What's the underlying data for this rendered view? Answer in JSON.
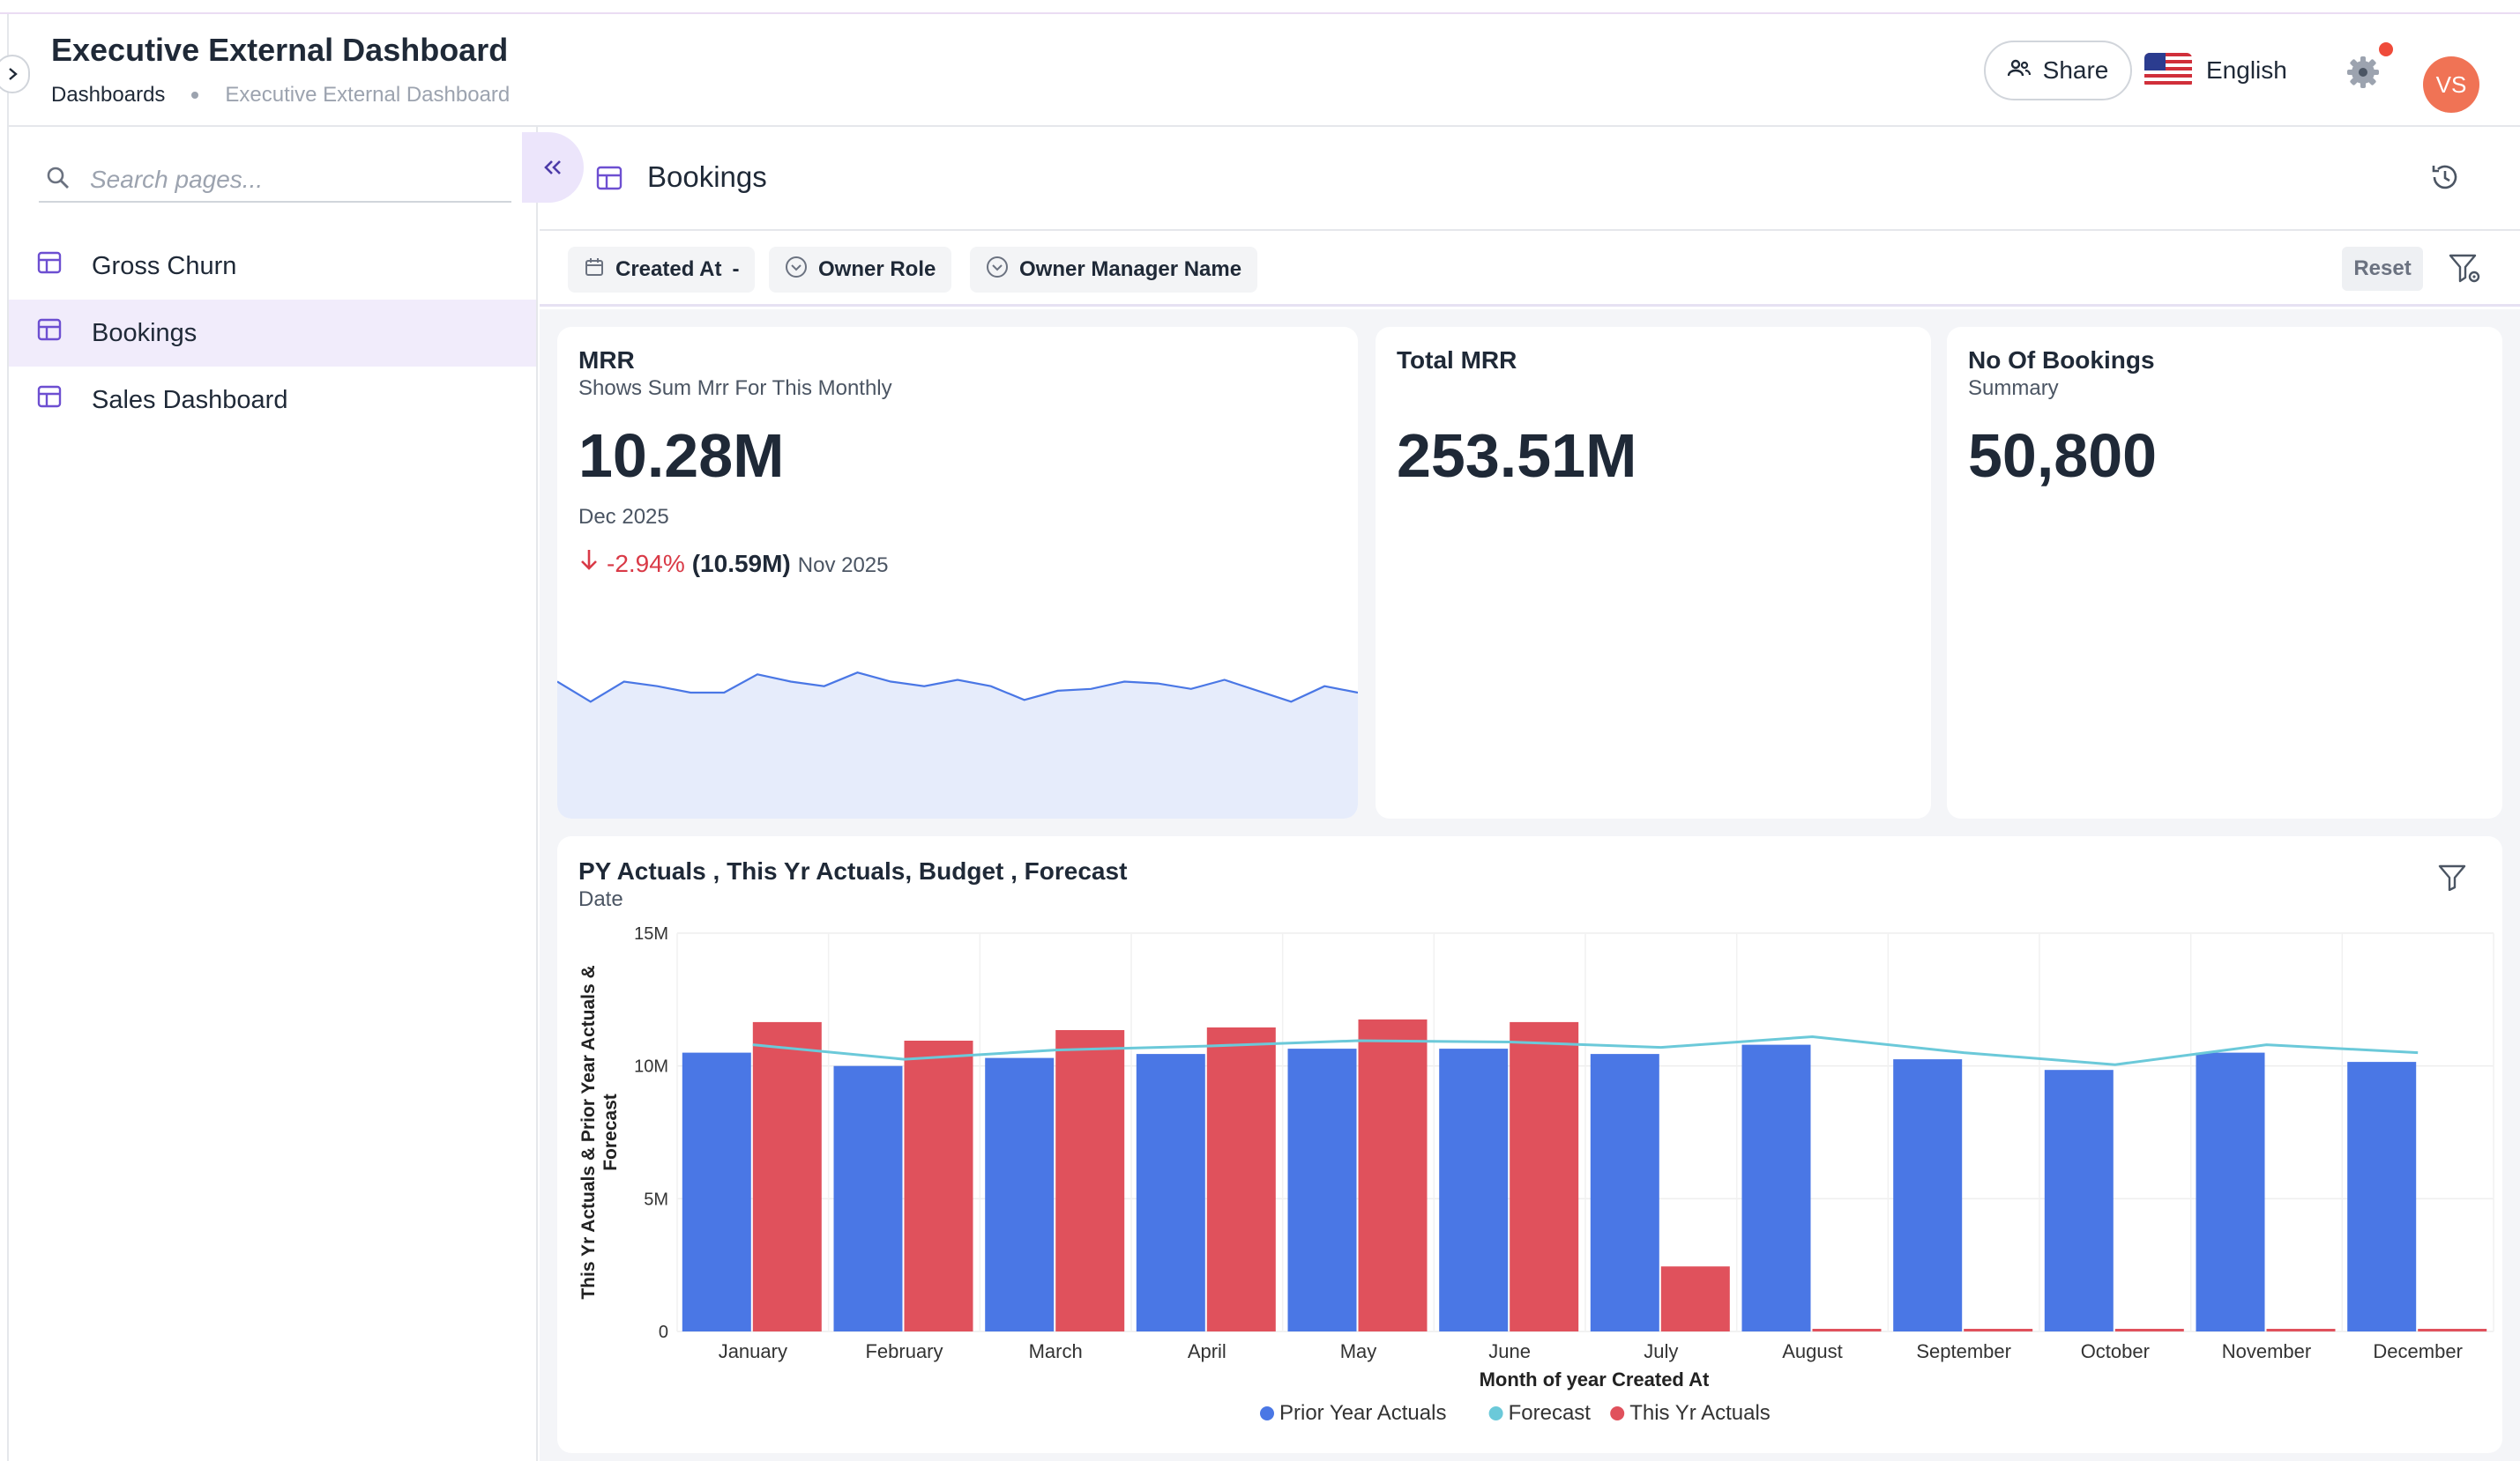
{
  "header": {
    "title": "Executive External Dashboard",
    "breadcrumb": [
      "Dashboards",
      "Executive External Dashboard"
    ],
    "share_label": "Share",
    "language": "English",
    "avatar_initials": "VS"
  },
  "sidebar": {
    "search_placeholder": "Search pages...",
    "items": [
      {
        "label": "Gross Churn",
        "active": false
      },
      {
        "label": "Bookings",
        "active": true
      },
      {
        "label": "Sales Dashboard",
        "active": false
      }
    ]
  },
  "page": {
    "title": "Bookings"
  },
  "filters": {
    "chips": [
      "Created At",
      "Owner Role",
      "Owner Manager Name"
    ],
    "created_at_suffix": "-",
    "reset_label": "Reset"
  },
  "cards": {
    "mrr": {
      "title": "MRR",
      "subtitle": "Shows Sum Mrr For This Monthly",
      "value": "10.28M",
      "period": "Dec 2025",
      "delta_pct": "-2.94%",
      "delta_prev": "(10.59M)",
      "delta_label": "Nov 2025",
      "sparkline": [
        10.5,
        10.28,
        10.5,
        10.45,
        10.38,
        10.38,
        10.58,
        10.5,
        10.45,
        10.6,
        10.5,
        10.45,
        10.52,
        10.45,
        10.3,
        10.4,
        10.42,
        10.5,
        10.48,
        10.42,
        10.52,
        10.4,
        10.28,
        10.45,
        10.38
      ]
    },
    "total_mrr": {
      "title": "Total MRR",
      "value": "253.51M"
    },
    "bookings": {
      "title": "No Of Bookings",
      "subtitle": "Summary",
      "value": "50,800"
    }
  },
  "chart_data": {
    "type": "bar",
    "title": "PY Actuals , This Yr Actuals, Budget , Forecast",
    "subtitle": "Date",
    "xlabel": "Month of year Created At",
    "ylabel": "This Yr Actuals & Prior Year Actuals & Forecast",
    "ylim": [
      0,
      15000000
    ],
    "yticks": [
      "0",
      "5M",
      "10M",
      "15M"
    ],
    "categories": [
      "January",
      "February",
      "March",
      "April",
      "May",
      "June",
      "July",
      "August",
      "September",
      "October",
      "November",
      "December"
    ],
    "series": [
      {
        "name": "Prior Year Actuals",
        "type": "bar",
        "color": "#4a77e5",
        "values": [
          10500000,
          10000000,
          10300000,
          10450000,
          10650000,
          10650000,
          10450000,
          10800000,
          10250000,
          9850000,
          10500000,
          10150000
        ]
      },
      {
        "name": "This Yr Actuals",
        "type": "bar",
        "color": "#e0515c",
        "values": [
          11650000,
          10950000,
          11350000,
          11450000,
          11750000,
          11650000,
          2450000,
          100000,
          100000,
          100000,
          100000,
          100000
        ]
      },
      {
        "name": "Forecast",
        "type": "line",
        "color": "#6bc9d9",
        "values": [
          10800000,
          10250000,
          10600000,
          10750000,
          10950000,
          10900000,
          10700000,
          11100000,
          10500000,
          10050000,
          10800000,
          10500000
        ]
      }
    ],
    "legend": [
      "Prior Year Actuals",
      "Forecast",
      "This Yr Actuals"
    ],
    "legend_position": "bottom",
    "grid": true
  }
}
